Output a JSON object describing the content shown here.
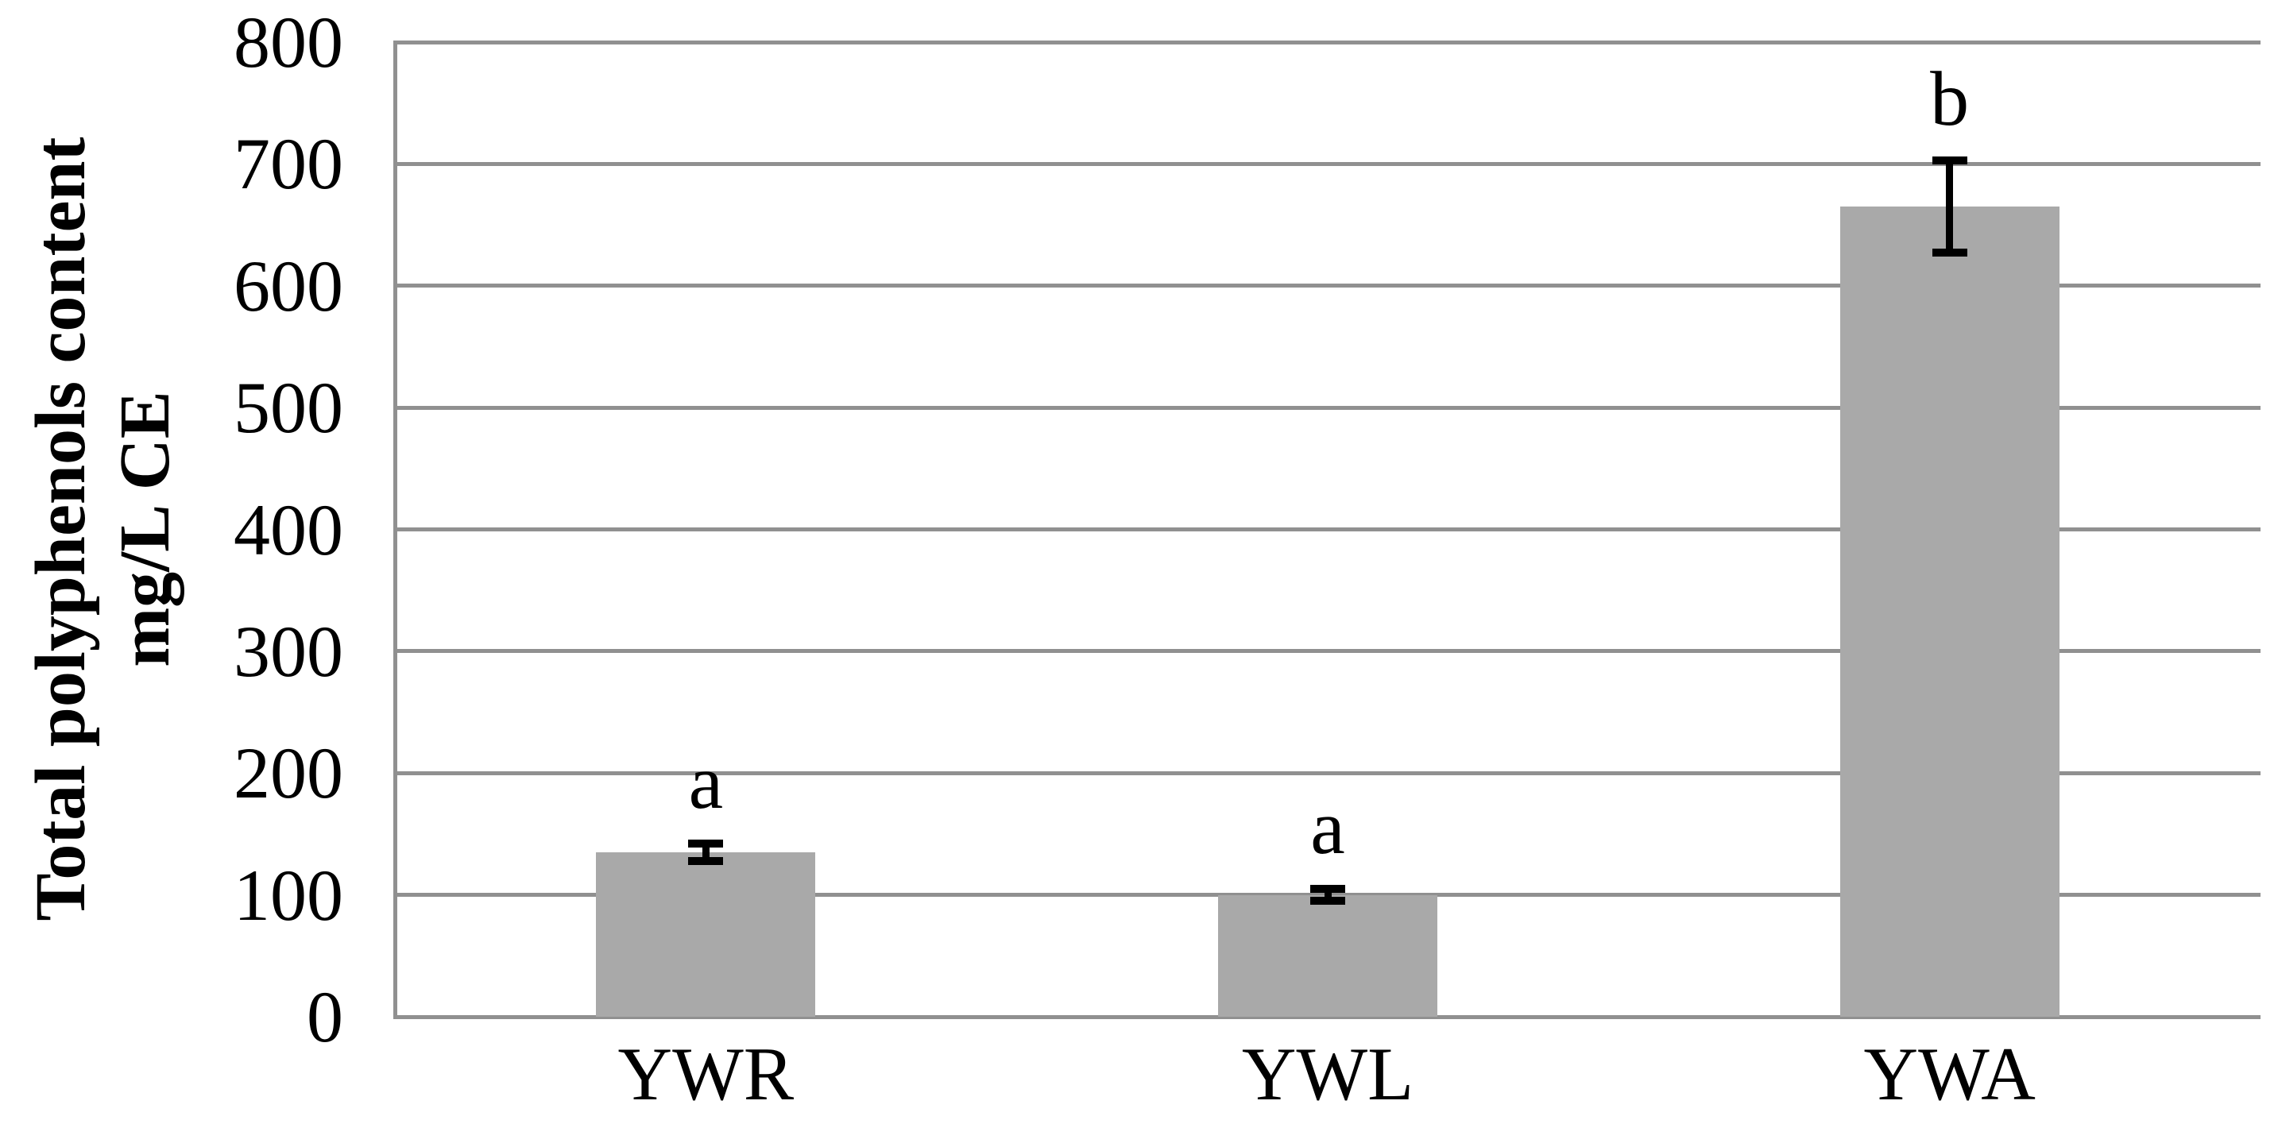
{
  "figure": {
    "y_axis_title_line1": "Total polyphenols content",
    "y_axis_title_line2": "mg/L CE"
  },
  "chart_data": {
    "type": "bar",
    "categories": [
      "YWR",
      "YWL",
      "YWA"
    ],
    "values": [
      135,
      100,
      665
    ],
    "error_bars": [
      7,
      5,
      38
    ],
    "significance_letters": [
      "a",
      "a",
      "b"
    ],
    "title": "",
    "xlabel": "",
    "ylabel": "Total polyphenols content mg/L CE",
    "ylim": [
      0,
      800
    ],
    "yticks": [
      0,
      100,
      200,
      300,
      400,
      500,
      600,
      700,
      800
    ],
    "grid": true,
    "legend": false,
    "colors": {
      "bar": "#A9A9A9",
      "grid": "#909090",
      "error": "#000000",
      "text": "#000000",
      "background": "#FFFFFF"
    }
  }
}
